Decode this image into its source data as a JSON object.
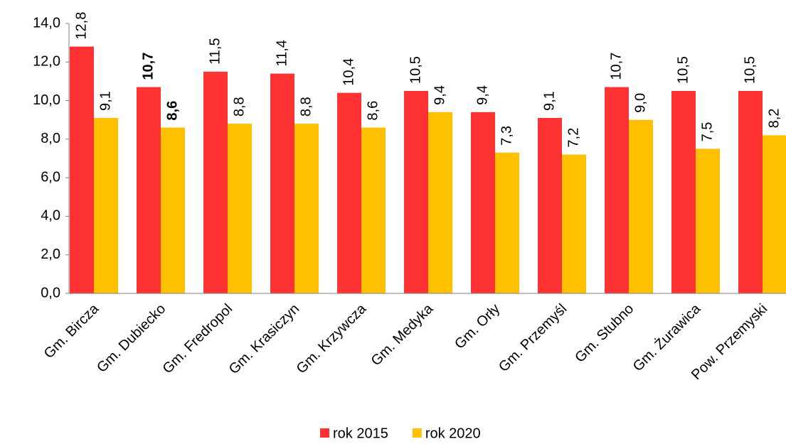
{
  "chart_data": {
    "type": "bar",
    "categories": [
      "Gm. Bircza",
      "Gm. Dubiecko",
      "Gm. Fredropol",
      "Gm. Krasiczyn",
      "Gm. Krzywcza",
      "Gm. Medyka",
      "Gm. Orły",
      "Gm. Przemyśl",
      "Gm. Stubno",
      "Gm. Żurawica",
      "Pow. Przemyski"
    ],
    "series": [
      {
        "name": "rok 2015",
        "color": "#ff3333",
        "values": [
          12.8,
          10.7,
          11.5,
          11.4,
          10.4,
          10.5,
          9.4,
          9.1,
          10.7,
          10.5,
          10.5
        ],
        "value_labels": [
          "12,8",
          "10,7",
          "11,5",
          "11,4",
          "10,4",
          "10,5",
          "9,4",
          "9,1",
          "10,7",
          "10,5",
          "10,5"
        ]
      },
      {
        "name": "rok 2020",
        "color": "#ffc000",
        "values": [
          9.1,
          8.6,
          8.8,
          8.8,
          8.6,
          9.4,
          7.3,
          7.2,
          9.0,
          7.5,
          8.2
        ],
        "value_labels": [
          "9,1",
          "8,6",
          "8,8",
          "8,8",
          "8,6",
          "9,4",
          "7,3",
          "7,2",
          "9,0",
          "7,5",
          "8,2"
        ]
      }
    ],
    "ylim": [
      0,
      14
    ],
    "yticks": [
      {
        "value": 0,
        "label": "0,0"
      },
      {
        "value": 2,
        "label": "2,0"
      },
      {
        "value": 4,
        "label": "4,0"
      },
      {
        "value": 6,
        "label": "6,0"
      },
      {
        "value": 8,
        "label": "8,0"
      },
      {
        "value": 10,
        "label": "10,0"
      },
      {
        "value": 12,
        "label": "12,0"
      },
      {
        "value": 14,
        "label": "14,0"
      }
    ],
    "grid": false,
    "legend": "bottom",
    "bold_category_index": 1
  }
}
